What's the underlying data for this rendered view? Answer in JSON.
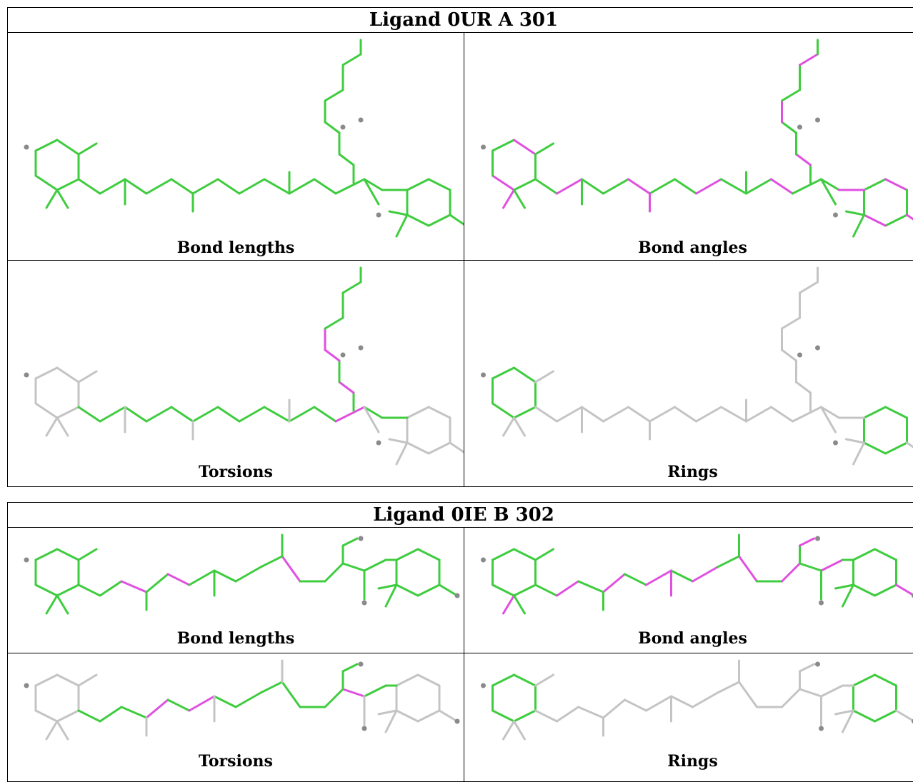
{
  "colors": {
    "good": "#3fcc3f",
    "outlier": "#e050e0",
    "neutral": "#c4c4c4",
    "atom": "#8a8a8a"
  },
  "ligands": [
    {
      "title": "Ligand 0UR A 301",
      "panels": [
        {
          "caption": "Bond lengths",
          "scheme": "lengths"
        },
        {
          "caption": "Bond angles",
          "scheme": "angles"
        },
        {
          "caption": "Torsions",
          "scheme": "torsions"
        },
        {
          "caption": "Rings",
          "scheme": "rings"
        }
      ]
    },
    {
      "title": "Ligand 0IE B 302",
      "panels": [
        {
          "caption": "Bond lengths",
          "scheme": "lengths"
        },
        {
          "caption": "Bond angles",
          "scheme": "angles"
        },
        {
          "caption": "Torsions",
          "scheme": "torsions"
        },
        {
          "caption": "Rings",
          "scheme": "rings"
        }
      ]
    }
  ]
}
